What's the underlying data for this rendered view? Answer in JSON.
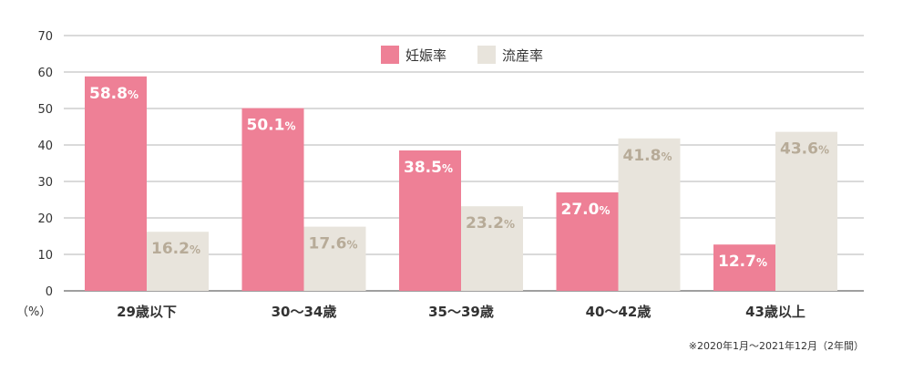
{
  "chart_data": {
    "type": "bar",
    "title": "",
    "xlabel": "",
    "ylabel": "（%）",
    "ylim": [
      0,
      70
    ],
    "yticks": [
      0,
      10,
      20,
      30,
      40,
      50,
      60,
      70
    ],
    "grid": true,
    "legend_position": "top-center",
    "categories": [
      "29歳以下",
      "30〜34歳",
      "35〜39歳",
      "40〜42歳",
      "43歳以上"
    ],
    "series": [
      {
        "name": "妊娠率",
        "color": "#ee8096",
        "label_color": "#ffffff",
        "values": [
          58.8,
          50.1,
          38.5,
          27.0,
          12.7
        ]
      },
      {
        "name": "流産率",
        "color": "#e8e4dc",
        "label_color": "#b7ab98",
        "values": [
          16.2,
          17.6,
          23.2,
          41.8,
          43.6
        ]
      }
    ],
    "value_unit": "%",
    "footnote": "※2020年1月〜2021年12月（2年間）"
  }
}
